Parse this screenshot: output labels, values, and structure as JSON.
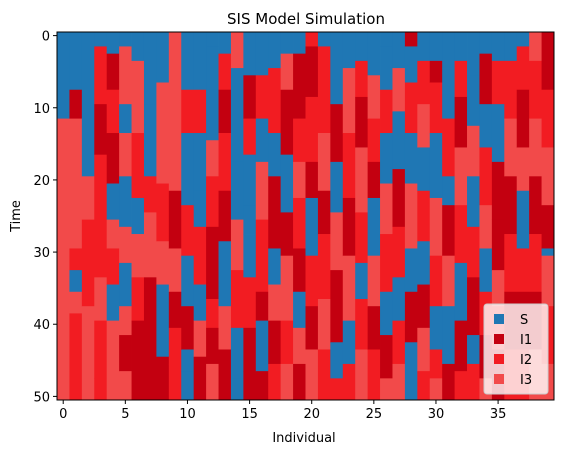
{
  "chart_data": {
    "type": "heatmap",
    "title": "SIS Model Simulation",
    "xlabel": "Individual",
    "ylabel": "Time",
    "n_individuals": 40,
    "n_times": 51,
    "x_ticks": [
      0,
      5,
      10,
      15,
      20,
      25,
      30,
      35
    ],
    "y_ticks": [
      0,
      10,
      20,
      30,
      40,
      50
    ],
    "y_axis_inverted": true,
    "xlim": [
      -0.5,
      39.5
    ],
    "ylim": [
      50.5,
      -0.5
    ],
    "grid": false,
    "legend": {
      "position": "lower-right",
      "entries": [
        {
          "label": "S",
          "state": 0,
          "color": "#1f77b4"
        },
        {
          "label": "I1",
          "state": 1,
          "color": "#c30010"
        },
        {
          "label": "I2",
          "state": 2,
          "color": "#f21c22"
        },
        {
          "label": "I3",
          "state": 3,
          "color": "#f24a4a"
        }
      ]
    },
    "columns": [
      [
        [
          0,
          0
        ],
        [
          12,
          3
        ]
      ],
      [
        [
          0,
          0
        ],
        [
          8,
          1
        ],
        [
          12,
          3
        ],
        [
          30,
          2
        ],
        [
          33,
          0
        ],
        [
          36,
          3
        ],
        [
          39,
          2
        ]
      ],
      [
        [
          0,
          0
        ],
        [
          20,
          3
        ],
        [
          26,
          2
        ],
        [
          38,
          3
        ]
      ],
      [
        [
          0,
          0
        ],
        [
          2,
          2
        ],
        [
          10,
          1
        ],
        [
          17,
          2
        ],
        [
          34,
          3
        ],
        [
          40,
          2
        ],
        [
          48,
          2
        ]
      ],
      [
        [
          0,
          0
        ],
        [
          3,
          1
        ],
        [
          8,
          2
        ],
        [
          14,
          1
        ],
        [
          21,
          0
        ],
        [
          26,
          3
        ],
        [
          30,
          2
        ],
        [
          35,
          0
        ],
        [
          40,
          3
        ]
      ],
      [
        [
          0,
          0
        ],
        [
          2,
          3
        ],
        [
          10,
          0
        ],
        [
          14,
          3
        ],
        [
          20,
          0
        ],
        [
          27,
          3
        ],
        [
          32,
          0
        ],
        [
          38,
          3
        ],
        [
          42,
          1
        ],
        [
          47,
          3
        ]
      ],
      [
        [
          0,
          0
        ],
        [
          4,
          3
        ],
        [
          14,
          2
        ],
        [
          23,
          0
        ],
        [
          28,
          3
        ],
        [
          34,
          2
        ],
        [
          40,
          1
        ]
      ],
      [
        [
          0,
          0
        ],
        [
          10,
          0
        ],
        [
          20,
          2
        ],
        [
          25,
          3
        ],
        [
          34,
          1
        ],
        [
          44,
          1
        ]
      ],
      [
        [
          0,
          0
        ],
        [
          7,
          3
        ],
        [
          21,
          2
        ],
        [
          29,
          3
        ],
        [
          35,
          0
        ],
        [
          45,
          1
        ]
      ],
      [
        [
          0,
          3
        ],
        [
          7,
          3
        ],
        [
          22,
          1
        ],
        [
          30,
          3
        ],
        [
          36,
          1
        ],
        [
          41,
          2
        ],
        [
          46,
          2
        ]
      ],
      [
        [
          0,
          0
        ],
        [
          8,
          2
        ],
        [
          14,
          0
        ],
        [
          24,
          2
        ],
        [
          31,
          0
        ],
        [
          38,
          1
        ],
        [
          44,
          0
        ],
        [
          47,
          0
        ]
      ],
      [
        [
          0,
          0
        ],
        [
          8,
          2
        ],
        [
          14,
          0
        ],
        [
          22,
          0
        ],
        [
          27,
          2
        ],
        [
          35,
          0
        ],
        [
          40,
          3
        ],
        [
          45,
          1
        ]
      ],
      [
        [
          0,
          0
        ],
        [
          2,
          0
        ],
        [
          8,
          0
        ],
        [
          15,
          3
        ],
        [
          20,
          2
        ],
        [
          27,
          1
        ],
        [
          37,
          2
        ],
        [
          41,
          1
        ],
        [
          46,
          3
        ]
      ],
      [
        [
          0,
          0
        ],
        [
          3,
          2
        ],
        [
          8,
          1
        ],
        [
          14,
          2
        ],
        [
          22,
          1
        ],
        [
          29,
          0
        ],
        [
          38,
          3
        ],
        [
          44,
          1
        ]
      ],
      [
        [
          0,
          3
        ],
        [
          5,
          0
        ],
        [
          12,
          0
        ],
        [
          18,
          0
        ],
        [
          26,
          3
        ],
        [
          33,
          2
        ],
        [
          41,
          0
        ],
        [
          48,
          0
        ]
      ],
      [
        [
          0,
          0
        ],
        [
          6,
          1
        ],
        [
          12,
          2
        ],
        [
          17,
          0
        ],
        [
          24,
          0
        ],
        [
          28,
          0
        ],
        [
          34,
          2
        ],
        [
          41,
          1
        ],
        [
          47,
          1
        ]
      ],
      [
        [
          0,
          0
        ],
        [
          6,
          2
        ],
        [
          12,
          0
        ],
        [
          18,
          3
        ],
        [
          26,
          2
        ],
        [
          36,
          1
        ],
        [
          40,
          0
        ],
        [
          47,
          1
        ]
      ],
      [
        [
          0,
          0
        ],
        [
          5,
          2
        ],
        [
          14,
          0
        ],
        [
          20,
          1
        ],
        [
          30,
          0
        ],
        [
          35,
          3
        ],
        [
          40,
          1
        ],
        [
          46,
          2
        ]
      ],
      [
        [
          0,
          0
        ],
        [
          3,
          3
        ],
        [
          8,
          1
        ],
        [
          17,
          0
        ],
        [
          25,
          1
        ],
        [
          31,
          3
        ],
        [
          40,
          2
        ],
        [
          46,
          3
        ]
      ],
      [
        [
          0,
          0
        ],
        [
          3,
          1
        ],
        [
          12,
          2
        ],
        [
          18,
          3
        ],
        [
          23,
          2
        ],
        [
          30,
          1
        ],
        [
          36,
          0
        ],
        [
          41,
          3
        ],
        [
          46,
          1
        ]
      ],
      [
        [
          0,
          2
        ],
        [
          2,
          1
        ],
        [
          9,
          2
        ],
        [
          18,
          1
        ],
        [
          23,
          0
        ],
        [
          31,
          2
        ],
        [
          38,
          1
        ],
        [
          44,
          3
        ]
      ],
      [
        [
          0,
          0
        ],
        [
          2,
          2
        ],
        [
          10,
          2
        ],
        [
          14,
          3
        ],
        [
          22,
          1
        ],
        [
          28,
          2
        ],
        [
          37,
          3
        ],
        [
          44,
          2
        ]
      ],
      [
        [
          0,
          0
        ],
        [
          10,
          1
        ],
        [
          18,
          0
        ],
        [
          25,
          3
        ],
        [
          33,
          1
        ],
        [
          43,
          0
        ],
        [
          48,
          2
        ]
      ],
      [
        [
          0,
          0
        ],
        [
          5,
          3
        ],
        [
          14,
          2
        ],
        [
          23,
          1
        ],
        [
          31,
          3
        ],
        [
          40,
          0
        ],
        [
          46,
          2
        ]
      ],
      [
        [
          0,
          0
        ],
        [
          4,
          2
        ],
        [
          9,
          1
        ],
        [
          16,
          3
        ],
        [
          25,
          2
        ],
        [
          32,
          0
        ],
        [
          37,
          2
        ],
        [
          44,
          3
        ]
      ],
      [
        [
          0,
          0
        ],
        [
          6,
          3
        ],
        [
          12,
          2
        ],
        [
          18,
          1
        ],
        [
          23,
          0
        ],
        [
          31,
          3
        ],
        [
          38,
          1
        ],
        [
          44,
          2
        ]
      ],
      [
        [
          0,
          0
        ],
        [
          2,
          0
        ],
        [
          8,
          2
        ],
        [
          14,
          0
        ],
        [
          21,
          3
        ],
        [
          28,
          2
        ],
        [
          36,
          0
        ],
        [
          42,
          1
        ],
        [
          48,
          3
        ]
      ],
      [
        [
          0,
          0
        ],
        [
          5,
          3
        ],
        [
          11,
          0
        ],
        [
          19,
          1
        ],
        [
          27,
          2
        ],
        [
          34,
          0
        ],
        [
          40,
          2
        ],
        [
          46,
          3
        ]
      ],
      [
        [
          0,
          1
        ],
        [
          2,
          0
        ],
        [
          7,
          2
        ],
        [
          14,
          0
        ],
        [
          21,
          3
        ],
        [
          30,
          0
        ],
        [
          36,
          1
        ],
        [
          43,
          0
        ]
      ],
      [
        [
          0,
          0
        ],
        [
          4,
          2
        ],
        [
          10,
          3
        ],
        [
          16,
          0
        ],
        [
          22,
          2
        ],
        [
          29,
          0
        ],
        [
          35,
          1
        ],
        [
          41,
          3
        ],
        [
          47,
          2
        ]
      ],
      [
        [
          0,
          0
        ],
        [
          4,
          1
        ],
        [
          7,
          2
        ],
        [
          14,
          0
        ],
        [
          23,
          3
        ],
        [
          31,
          2
        ],
        [
          38,
          0
        ],
        [
          44,
          2
        ],
        [
          48,
          3
        ]
      ],
      [
        [
          0,
          0
        ],
        [
          5,
          0
        ],
        [
          12,
          2
        ],
        [
          20,
          0
        ],
        [
          24,
          1
        ],
        [
          31,
          3
        ],
        [
          38,
          0
        ],
        [
          46,
          1
        ]
      ],
      [
        [
          0,
          0
        ],
        [
          4,
          2
        ],
        [
          9,
          1
        ],
        [
          16,
          3
        ],
        [
          24,
          2
        ],
        [
          32,
          0
        ],
        [
          40,
          1
        ],
        [
          47,
          2
        ]
      ],
      [
        [
          0,
          0
        ],
        [
          6,
          0
        ],
        [
          13,
          3
        ],
        [
          20,
          0
        ],
        [
          27,
          2
        ],
        [
          34,
          1
        ],
        [
          42,
          0
        ],
        [
          46,
          2
        ]
      ],
      [
        [
          0,
          0
        ],
        [
          3,
          1
        ],
        [
          10,
          0
        ],
        [
          16,
          2
        ],
        [
          24,
          3
        ],
        [
          30,
          0
        ],
        [
          36,
          2
        ],
        [
          42,
          1
        ],
        [
          48,
          3
        ]
      ],
      [
        [
          0,
          0
        ],
        [
          4,
          2
        ],
        [
          10,
          0
        ],
        [
          18,
          1
        ],
        [
          26,
          1
        ],
        [
          33,
          3
        ],
        [
          38,
          2
        ],
        [
          44,
          1
        ]
      ],
      [
        [
          0,
          0
        ],
        [
          4,
          2
        ],
        [
          12,
          3
        ],
        [
          20,
          1
        ],
        [
          28,
          2
        ],
        [
          36,
          1
        ],
        [
          44,
          2
        ]
      ],
      [
        [
          0,
          0
        ],
        [
          2,
          2
        ],
        [
          8,
          1
        ],
        [
          16,
          3
        ],
        [
          22,
          0
        ],
        [
          30,
          2
        ],
        [
          36,
          1
        ],
        [
          44,
          2
        ]
      ],
      [
        [
          0,
          3
        ],
        [
          4,
          2
        ],
        [
          12,
          3
        ],
        [
          20,
          1
        ],
        [
          28,
          2
        ],
        [
          36,
          1
        ],
        [
          44,
          3
        ]
      ],
      [
        [
          0,
          1
        ],
        [
          8,
          2
        ],
        [
          16,
          3
        ],
        [
          24,
          1
        ],
        [
          30,
          0
        ],
        [
          31,
          3
        ],
        [
          38,
          2
        ],
        [
          46,
          3
        ]
      ]
    ]
  }
}
